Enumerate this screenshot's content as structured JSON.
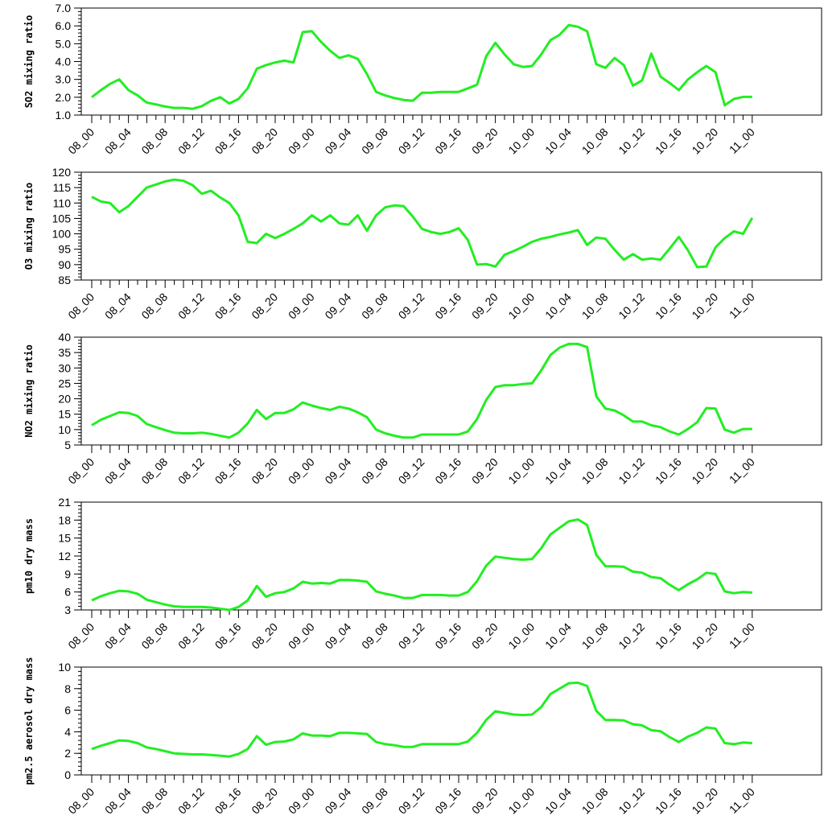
{
  "chart_data": [
    {
      "type": "line",
      "title": "",
      "xlabel": "",
      "ylabel": "SO2 mixing ratio",
      "ylim": [
        1.0,
        7.0
      ],
      "yticks": [
        "1.0",
        "2.0",
        "3.0",
        "4.0",
        "5.0",
        "6.0",
        "7.0"
      ],
      "yminor_step": 0.2,
      "color": "#22ee22",
      "x_tick_labels": [
        "08_00",
        "08_04",
        "08_08",
        "08_12",
        "08_16",
        "08_20",
        "09_00",
        "09_04",
        "09_08",
        "09_12",
        "09_16",
        "09_20",
        "10_00",
        "10_04",
        "10_08",
        "10_12",
        "10_16",
        "10_20",
        "11_00"
      ],
      "series": [
        {
          "values": [
            2.0,
            2.4,
            2.75,
            3.0,
            2.4,
            2.1,
            1.7,
            1.6,
            1.48,
            1.4,
            1.4,
            1.35,
            1.5,
            1.8,
            2.0,
            1.65,
            1.9,
            2.5,
            3.6,
            3.8,
            3.95,
            4.05,
            3.95,
            5.65,
            5.7,
            5.1,
            4.6,
            4.2,
            4.35,
            4.15,
            3.3,
            2.3,
            2.1,
            1.95,
            1.85,
            1.8,
            2.25,
            2.25,
            2.3,
            2.3,
            2.3,
            2.5,
            2.7,
            4.3,
            5.05,
            4.4,
            3.85,
            3.7,
            3.75,
            4.4,
            5.2,
            5.5,
            6.05,
            5.95,
            5.7,
            3.85,
            3.65,
            4.2,
            3.8,
            2.65,
            2.95,
            4.45,
            3.15,
            2.8,
            2.4,
            3.0,
            3.4,
            3.75,
            3.4,
            1.55,
            1.9,
            2.02,
            2.02
          ]
        }
      ]
    },
    {
      "type": "line",
      "title": "",
      "xlabel": "",
      "ylabel": "O3 mixing ratio",
      "ylim": [
        85,
        120
      ],
      "yticks": [
        "85",
        "90",
        "95",
        "100",
        "105",
        "110",
        "115",
        "120"
      ],
      "yminor_step": 1,
      "color": "#22ee22",
      "x_tick_labels": [
        "08_00",
        "08_04",
        "08_08",
        "08_12",
        "08_16",
        "08_20",
        "09_00",
        "09_04",
        "09_08",
        "09_12",
        "09_16",
        "09_20",
        "10_00",
        "10_04",
        "10_08",
        "10_12",
        "10_16",
        "10_20",
        "11_00"
      ],
      "series": [
        {
          "values": [
            112,
            110.5,
            110,
            107,
            109,
            112,
            115,
            116,
            117,
            117.6,
            117.2,
            115.8,
            113,
            114,
            111.8,
            110,
            106,
            97.4,
            97,
            100,
            98.6,
            100,
            101.6,
            103.4,
            106,
            104,
            106,
            103.4,
            103,
            106,
            101,
            106,
            108.6,
            109.2,
            109,
            105.6,
            101.6,
            100.6,
            100,
            100.6,
            101.8,
            98,
            90,
            90.2,
            89.4,
            93.2,
            94.4,
            95.8,
            97.4,
            98.4,
            99,
            99.8,
            100.4,
            101.2,
            96.4,
            98.8,
            98.4,
            94.8,
            91.6,
            93.4,
            91.6,
            92,
            91.6,
            95.2,
            99,
            94.6,
            89.2,
            89.4,
            95.6,
            98.6,
            100.8,
            100,
            105.2
          ]
        }
      ]
    },
    {
      "type": "line",
      "title": "",
      "xlabel": "",
      "ylabel": "NO2 mixing ratio",
      "ylim": [
        5,
        40
      ],
      "yticks": [
        "5",
        "10",
        "15",
        "20",
        "25",
        "30",
        "35",
        "40"
      ],
      "yminor_step": 1,
      "color": "#22ee22",
      "x_tick_labels": [
        "08_00",
        "08_04",
        "08_08",
        "08_12",
        "08_16",
        "08_20",
        "09_00",
        "09_04",
        "09_08",
        "09_12",
        "09_16",
        "09_20",
        "10_00",
        "10_04",
        "10_08",
        "10_12",
        "10_16",
        "10_20",
        "11_00"
      ],
      "series": [
        {
          "values": [
            11.4,
            13.2,
            14.4,
            15.6,
            15.4,
            14.4,
            11.8,
            10.8,
            9.8,
            9,
            8.8,
            8.8,
            9,
            8.6,
            8,
            7.4,
            9,
            12,
            16.4,
            13.4,
            15.4,
            15.4,
            16.6,
            18.8,
            17.8,
            17,
            16.4,
            17.4,
            16.8,
            15.6,
            14,
            10,
            8.8,
            8,
            7.4,
            7.4,
            8.4,
            8.4,
            8.4,
            8.4,
            8.4,
            9.4,
            13.4,
            19.6,
            23.8,
            24.4,
            24.4,
            24.8,
            25,
            29.2,
            34.2,
            36.6,
            37.8,
            37.8,
            36.8,
            20.8,
            16.8,
            16.2,
            14.6,
            12.6,
            12.6,
            11.4,
            10.8,
            9.4,
            8.4,
            10.2,
            12.4,
            17,
            16.8,
            10,
            9,
            10.2,
            10.2
          ]
        }
      ]
    },
    {
      "type": "line",
      "title": "",
      "xlabel": "",
      "ylabel": "pm10 dry mass",
      "ylim": [
        3,
        21
      ],
      "yticks": [
        "3",
        "6",
        "9",
        "12",
        "15",
        "18",
        "21"
      ],
      "yminor_step": 0.6,
      "color": "#22ee22",
      "x_tick_labels": [
        "08_00",
        "08_04",
        "08_08",
        "08_12",
        "08_16",
        "08_20",
        "09_00",
        "09_04",
        "09_08",
        "09_12",
        "09_16",
        "09_20",
        "10_00",
        "10_04",
        "10_08",
        "10_12",
        "10_16",
        "10_20",
        "11_00"
      ],
      "series": [
        {
          "values": [
            4.6,
            5.3,
            5.8,
            6.2,
            6.1,
            5.7,
            4.7,
            4.3,
            3.9,
            3.6,
            3.5,
            3.5,
            3.5,
            3.4,
            3.2,
            3.0,
            3.5,
            4.6,
            7.0,
            5.2,
            5.8,
            6.0,
            6.6,
            7.7,
            7.4,
            7.5,
            7.4,
            8.0,
            8.0,
            7.9,
            7.7,
            6.1,
            5.7,
            5.4,
            5.0,
            5.0,
            5.5,
            5.5,
            5.5,
            5.4,
            5.4,
            6.0,
            7.8,
            10.4,
            11.9,
            11.7,
            11.5,
            11.4,
            11.5,
            13.3,
            15.6,
            16.7,
            17.8,
            18.1,
            17.2,
            12.2,
            10.3,
            10.3,
            10.2,
            9.4,
            9.2,
            8.5,
            8.3,
            7.2,
            6.3,
            7.3,
            8.1,
            9.2,
            9.0,
            6.1,
            5.8,
            6.0,
            5.9
          ]
        }
      ]
    },
    {
      "type": "line",
      "title": "",
      "xlabel": "",
      "ylabel": "pm2.5 aerosol dry mass",
      "ylim": [
        0,
        10
      ],
      "yticks": [
        "0",
        "2",
        "4",
        "6",
        "8",
        "10"
      ],
      "yminor_step": 0.4,
      "color": "#22ee22",
      "x_tick_labels": [
        "08_00",
        "08_04",
        "08_08",
        "08_12",
        "08_16",
        "08_20",
        "09_00",
        "09_04",
        "09_08",
        "09_12",
        "09_16",
        "09_20",
        "10_00",
        "10_04",
        "10_08",
        "10_12",
        "10_16",
        "10_20",
        "11_00"
      ],
      "series": [
        {
          "values": [
            2.4,
            2.7,
            2.95,
            3.2,
            3.15,
            2.95,
            2.55,
            2.4,
            2.2,
            2.0,
            1.95,
            1.9,
            1.9,
            1.85,
            1.78,
            1.7,
            1.95,
            2.4,
            3.6,
            2.8,
            3.05,
            3.1,
            3.3,
            3.85,
            3.65,
            3.65,
            3.6,
            3.9,
            3.9,
            3.85,
            3.8,
            3.05,
            2.85,
            2.75,
            2.6,
            2.6,
            2.85,
            2.85,
            2.85,
            2.85,
            2.85,
            3.1,
            3.9,
            5.1,
            5.9,
            5.75,
            5.6,
            5.55,
            5.6,
            6.3,
            7.5,
            8.0,
            8.5,
            8.55,
            8.25,
            5.95,
            5.1,
            5.1,
            5.05,
            4.7,
            4.6,
            4.15,
            4.05,
            3.5,
            3.05,
            3.55,
            3.9,
            4.4,
            4.3,
            2.95,
            2.85,
            3.0,
            2.95
          ]
        }
      ]
    }
  ]
}
